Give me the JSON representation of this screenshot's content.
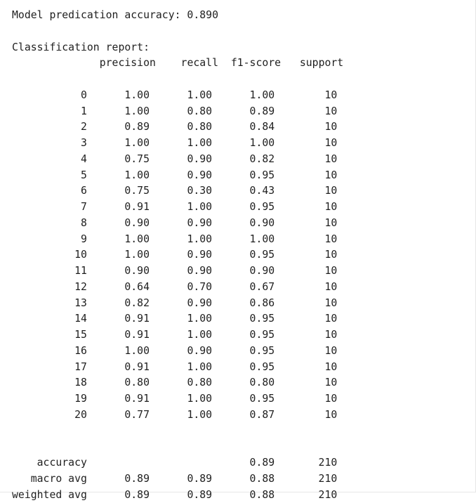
{
  "accuracy_line": "Model predication accuracy: 0.890",
  "report_title": "Classification report:",
  "columns": [
    "precision",
    "recall",
    "f1-score",
    "support"
  ],
  "rows": [
    {
      "label": "0",
      "precision": "1.00",
      "recall": "1.00",
      "f1": "1.00",
      "support": "10"
    },
    {
      "label": "1",
      "precision": "1.00",
      "recall": "0.80",
      "f1": "0.89",
      "support": "10"
    },
    {
      "label": "2",
      "precision": "0.89",
      "recall": "0.80",
      "f1": "0.84",
      "support": "10"
    },
    {
      "label": "3",
      "precision": "1.00",
      "recall": "1.00",
      "f1": "1.00",
      "support": "10"
    },
    {
      "label": "4",
      "precision": "0.75",
      "recall": "0.90",
      "f1": "0.82",
      "support": "10"
    },
    {
      "label": "5",
      "precision": "1.00",
      "recall": "0.90",
      "f1": "0.95",
      "support": "10"
    },
    {
      "label": "6",
      "precision": "0.75",
      "recall": "0.30",
      "f1": "0.43",
      "support": "10"
    },
    {
      "label": "7",
      "precision": "0.91",
      "recall": "1.00",
      "f1": "0.95",
      "support": "10"
    },
    {
      "label": "8",
      "precision": "0.90",
      "recall": "0.90",
      "f1": "0.90",
      "support": "10"
    },
    {
      "label": "9",
      "precision": "1.00",
      "recall": "1.00",
      "f1": "1.00",
      "support": "10"
    },
    {
      "label": "10",
      "precision": "1.00",
      "recall": "0.90",
      "f1": "0.95",
      "support": "10"
    },
    {
      "label": "11",
      "precision": "0.90",
      "recall": "0.90",
      "f1": "0.90",
      "support": "10"
    },
    {
      "label": "12",
      "precision": "0.64",
      "recall": "0.70",
      "f1": "0.67",
      "support": "10"
    },
    {
      "label": "13",
      "precision": "0.82",
      "recall": "0.90",
      "f1": "0.86",
      "support": "10"
    },
    {
      "label": "14",
      "precision": "0.91",
      "recall": "1.00",
      "f1": "0.95",
      "support": "10"
    },
    {
      "label": "15",
      "precision": "0.91",
      "recall": "1.00",
      "f1": "0.95",
      "support": "10"
    },
    {
      "label": "16",
      "precision": "1.00",
      "recall": "0.90",
      "f1": "0.95",
      "support": "10"
    },
    {
      "label": "17",
      "precision": "0.91",
      "recall": "1.00",
      "f1": "0.95",
      "support": "10"
    },
    {
      "label": "18",
      "precision": "0.80",
      "recall": "0.80",
      "f1": "0.80",
      "support": "10"
    },
    {
      "label": "19",
      "precision": "0.91",
      "recall": "1.00",
      "f1": "0.95",
      "support": "10"
    },
    {
      "label": "20",
      "precision": "0.77",
      "recall": "1.00",
      "f1": "0.87",
      "support": "10"
    }
  ],
  "summary": [
    {
      "label": "accuracy",
      "precision": "",
      "recall": "",
      "f1": "0.89",
      "support": "210"
    },
    {
      "label": "macro avg",
      "precision": "0.89",
      "recall": "0.89",
      "f1": "0.88",
      "support": "210"
    },
    {
      "label": "weighted avg",
      "precision": "0.89",
      "recall": "0.89",
      "f1": "0.88",
      "support": "210"
    }
  ]
}
